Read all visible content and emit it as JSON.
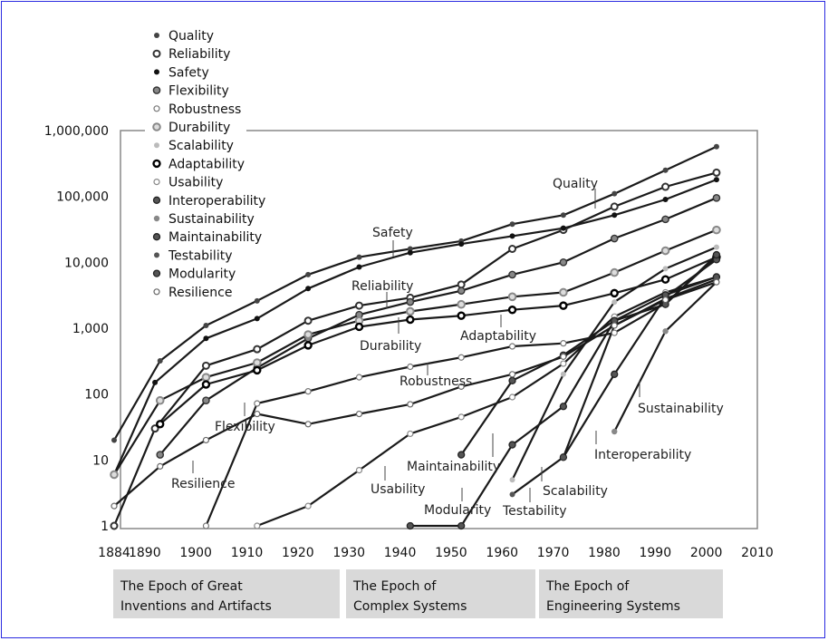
{
  "chart_data": {
    "type": "line",
    "title": "",
    "xlabel": "",
    "ylabel": "",
    "xlim": [
      1884,
      2010
    ],
    "ylim": [
      1,
      1000000
    ],
    "y_scale": "log",
    "x_ticks": [
      {
        "value": 1884,
        "label": "1884"
      },
      {
        "value": 1890,
        "label": "1890"
      },
      {
        "value": 1900,
        "label": "1900"
      },
      {
        "value": 1910,
        "label": "1910"
      },
      {
        "value": 1920,
        "label": "1920"
      },
      {
        "value": 1930,
        "label": "1930"
      },
      {
        "value": 1940,
        "label": "1940"
      },
      {
        "value": 1950,
        "label": "1950"
      },
      {
        "value": 1960,
        "label": "1960"
      },
      {
        "value": 1970,
        "label": "1970"
      },
      {
        "value": 1980,
        "label": "1980"
      },
      {
        "value": 1990,
        "label": "1990"
      },
      {
        "value": 2000,
        "label": "2000"
      },
      {
        "value": 2010,
        "label": "2010"
      }
    ],
    "y_ticks": [
      {
        "value": 1,
        "label": "1"
      },
      {
        "value": 10,
        "label": "10"
      },
      {
        "value": 100,
        "label": "100"
      },
      {
        "value": 1000,
        "label": "1,000"
      },
      {
        "value": 10000,
        "label": "10,000"
      },
      {
        "value": 100000,
        "label": "100,000"
      },
      {
        "value": 1000000,
        "label": "1,000,000"
      }
    ],
    "grid": false,
    "legend_position": "top-left",
    "epochs": [
      {
        "line1": "The Epoch of Great",
        "line2": "Inventions and Artifacts",
        "start": 1884,
        "end": 1926
      },
      {
        "line1": "The Epoch of",
        "line2": "Complex Systems",
        "start": 1926,
        "end": 1966
      },
      {
        "line1": "The Epoch of",
        "line2": "Engineering Systems",
        "start": 1966,
        "end": 2003
      }
    ],
    "series": [
      {
        "name": "Quality",
        "marker": "dot",
        "color": "#444444",
        "points": [
          [
            1884,
            20
          ],
          [
            1893,
            320
          ],
          [
            1902,
            1100
          ],
          [
            1912,
            2600
          ],
          [
            1922,
            6500
          ],
          [
            1932,
            12000
          ],
          [
            1942,
            16000
          ],
          [
            1952,
            21000
          ],
          [
            1962,
            38000
          ],
          [
            1972,
            52000
          ],
          [
            1982,
            110000
          ],
          [
            1992,
            250000
          ],
          [
            2002,
            570000
          ]
        ]
      },
      {
        "name": "Reliability",
        "marker": "ring",
        "color": "#333333",
        "points": [
          [
            1884,
            1
          ],
          [
            1892,
            30
          ],
          [
            1902,
            270
          ],
          [
            1912,
            480
          ],
          [
            1922,
            1300
          ],
          [
            1932,
            2200
          ],
          [
            1942,
            2900
          ],
          [
            1952,
            4600
          ],
          [
            1962,
            16000
          ],
          [
            1972,
            31000
          ],
          [
            1982,
            70000
          ],
          [
            1992,
            140000
          ],
          [
            2002,
            230000
          ]
        ]
      },
      {
        "name": "Safety",
        "marker": "dot",
        "color": "#111111",
        "points": [
          [
            1884,
            6
          ],
          [
            1892,
            150
          ],
          [
            1902,
            700
          ],
          [
            1912,
            1400
          ],
          [
            1922,
            4000
          ],
          [
            1932,
            8500
          ],
          [
            1942,
            14000
          ],
          [
            1952,
            19000
          ],
          [
            1962,
            25000
          ],
          [
            1972,
            33000
          ],
          [
            1982,
            52000
          ],
          [
            1992,
            90000
          ],
          [
            2002,
            180000
          ]
        ]
      },
      {
        "name": "Flexibility",
        "marker": "ringfill",
        "color": "#555555",
        "points": [
          [
            1893,
            12
          ],
          [
            1902,
            80
          ],
          [
            1912,
            250
          ],
          [
            1922,
            700
          ],
          [
            1932,
            1600
          ],
          [
            1942,
            2500
          ],
          [
            1952,
            3700
          ],
          [
            1962,
            6500
          ],
          [
            1972,
            10000
          ],
          [
            1982,
            23000
          ],
          [
            1992,
            45000
          ],
          [
            2002,
            95000
          ]
        ]
      },
      {
        "name": "Robustness",
        "marker": "ringsmall",
        "color": "#777777",
        "points": [
          [
            1902,
            1
          ],
          [
            1912,
            72
          ],
          [
            1922,
            110
          ],
          [
            1932,
            180
          ],
          [
            1942,
            260
          ],
          [
            1952,
            360
          ],
          [
            1962,
            530
          ],
          [
            1972,
            590
          ],
          [
            1982,
            850
          ],
          [
            1992,
            2400
          ],
          [
            2002,
            12000
          ]
        ]
      },
      {
        "name": "Durability",
        "marker": "ringgray",
        "color": "#888888",
        "points": [
          [
            1884,
            6
          ],
          [
            1893,
            80
          ],
          [
            1902,
            180
          ],
          [
            1912,
            300
          ],
          [
            1922,
            800
          ],
          [
            1932,
            1300
          ],
          [
            1942,
            1800
          ],
          [
            1952,
            2300
          ],
          [
            1962,
            3000
          ],
          [
            1972,
            3500
          ],
          [
            1982,
            7000
          ],
          [
            1992,
            15000
          ],
          [
            2002,
            31000
          ]
        ]
      },
      {
        "name": "Scalability",
        "marker": "dotlight",
        "color": "#aaaaaa",
        "points": [
          [
            1962,
            5
          ],
          [
            1972,
            200
          ],
          [
            1982,
            2500
          ],
          [
            1992,
            8000
          ],
          [
            2002,
            17000
          ]
        ]
      },
      {
        "name": "Adaptability",
        "marker": "ringbold",
        "color": "#111111",
        "points": [
          [
            1893,
            35
          ],
          [
            1902,
            140
          ],
          [
            1912,
            230
          ],
          [
            1922,
            550
          ],
          [
            1932,
            1050
          ],
          [
            1942,
            1350
          ],
          [
            1952,
            1550
          ],
          [
            1962,
            1900
          ],
          [
            1972,
            2200
          ],
          [
            1982,
            3400
          ],
          [
            1992,
            5500
          ],
          [
            2002,
            12000
          ]
        ]
      },
      {
        "name": "Usability",
        "marker": "ringsmall",
        "color": "#888888",
        "points": [
          [
            1912,
            1
          ],
          [
            1922,
            2
          ],
          [
            1932,
            7
          ],
          [
            1942,
            25
          ],
          [
            1952,
            45
          ],
          [
            1962,
            90
          ],
          [
            1972,
            290
          ],
          [
            1982,
            1500
          ],
          [
            1992,
            3500
          ],
          [
            2002,
            6000
          ]
        ]
      },
      {
        "name": "Interoperability",
        "marker": "ringdot",
        "color": "#555555",
        "points": [
          [
            1972,
            11
          ],
          [
            1982,
            200
          ],
          [
            1992,
            3000
          ],
          [
            2002,
            11000
          ]
        ]
      },
      {
        "name": "Sustainability",
        "marker": "dotgray",
        "color": "#888888",
        "points": [
          [
            1982,
            27
          ],
          [
            1992,
            900
          ],
          [
            2002,
            5000
          ]
        ]
      },
      {
        "name": "Maintainability",
        "marker": "ringdot",
        "color": "#666666",
        "points": [
          [
            1952,
            12
          ],
          [
            1962,
            160
          ],
          [
            1972,
            390
          ],
          [
            1982,
            1300
          ],
          [
            1992,
            3200
          ],
          [
            2002,
            6000
          ]
        ]
      },
      {
        "name": "Testability",
        "marker": "dot",
        "color": "#555555",
        "points": [
          [
            1962,
            3
          ],
          [
            1972,
            11
          ],
          [
            1982,
            1100
          ],
          [
            1992,
            2800
          ],
          [
            2002,
            5500
          ]
        ]
      },
      {
        "name": "Modularity",
        "marker": "ringdot",
        "color": "#333333",
        "points": [
          [
            1942,
            1
          ],
          [
            1952,
            1
          ],
          [
            1962,
            17
          ],
          [
            1972,
            65
          ],
          [
            1982,
            1300
          ],
          [
            1992,
            2300
          ],
          [
            2002,
            13000
          ]
        ]
      },
      {
        "name": "Resilience",
        "marker": "ringsmall",
        "color": "#666666",
        "points": [
          [
            1884,
            2
          ],
          [
            1893,
            8
          ],
          [
            1902,
            20
          ],
          [
            1912,
            50
          ],
          [
            1922,
            35
          ],
          [
            1932,
            50
          ],
          [
            1942,
            70
          ],
          [
            1952,
            130
          ],
          [
            1962,
            200
          ],
          [
            1972,
            370
          ],
          [
            1982,
            1100
          ],
          [
            1992,
            2700
          ],
          [
            2002,
            5000
          ]
        ]
      }
    ],
    "annotations": [
      {
        "text": "Quality",
        "series": "Quality"
      },
      {
        "text": "Safety",
        "series": "Safety"
      },
      {
        "text": "Reliability",
        "series": "Reliability"
      },
      {
        "text": "Durability",
        "series": "Durability"
      },
      {
        "text": "Adaptability",
        "series": "Adaptability"
      },
      {
        "text": "Robustness",
        "series": "Robustness"
      },
      {
        "text": "Flexibility",
        "series": "Flexibility"
      },
      {
        "text": "Resilience",
        "series": "Resilience"
      },
      {
        "text": "Sustainability",
        "series": "Sustainability"
      },
      {
        "text": "Interoperability",
        "series": "Interoperability"
      },
      {
        "text": "Maintainability",
        "series": "Maintainability"
      },
      {
        "text": "Usability",
        "series": "Usability"
      },
      {
        "text": "Scalability",
        "series": "Scalability"
      },
      {
        "text": "Modularity",
        "series": "Modularity"
      },
      {
        "text": "Testability",
        "series": "Testability"
      }
    ]
  }
}
